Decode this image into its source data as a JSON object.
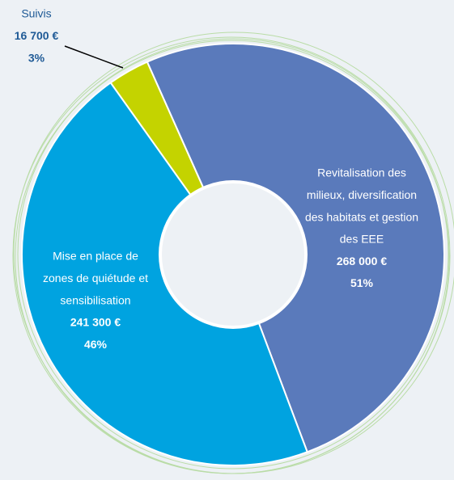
{
  "chart_data": {
    "type": "pie",
    "categories": [
      [
        "Revitalisation des",
        "milieux, diversification",
        "des habitats et gestion",
        "des EEE"
      ],
      [
        "Mise en place de",
        "zones de quiétude et",
        "sensibilisation"
      ],
      [
        "Suivis"
      ]
    ],
    "values": [
      268000,
      241300,
      16700
    ],
    "value_labels": [
      "268 000 €",
      "241 300 €",
      "16 700 €"
    ],
    "percentages": [
      51,
      46,
      3
    ],
    "percentage_labels": [
      "51%",
      "46%",
      "3%"
    ],
    "colors": [
      "#5a7abb",
      "#00a3e0",
      "#c4d300"
    ]
  }
}
